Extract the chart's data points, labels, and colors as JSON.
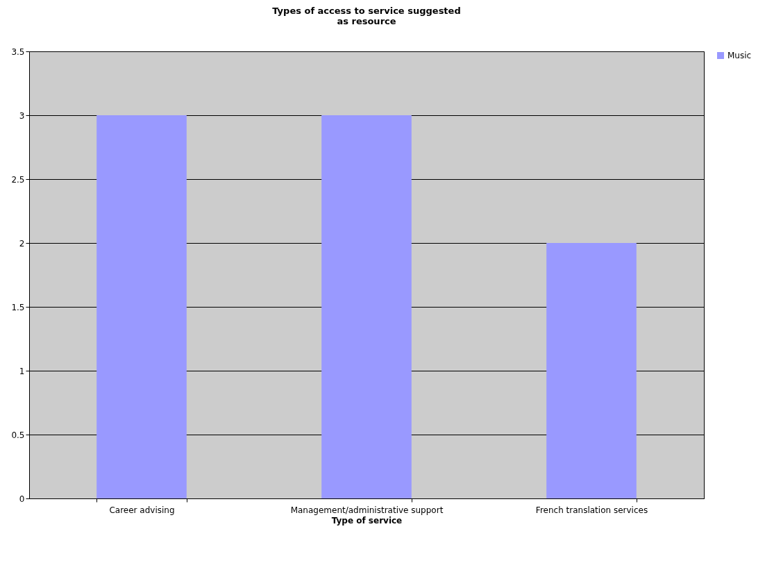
{
  "chart_data": {
    "type": "bar",
    "title": "Types of access to service suggested as resource",
    "xlabel": "Type of service",
    "categories": [
      "Career advising",
      "Management/administrative support",
      "French translation services"
    ],
    "series": [
      {
        "name": "Music",
        "color": "#9999ff",
        "values": [
          3,
          3,
          2
        ]
      }
    ],
    "ylim": [
      0,
      3.5
    ],
    "yticks": [
      0,
      0.5,
      1,
      1.5,
      2,
      2.5,
      3,
      3.5
    ],
    "grid": "y",
    "legend": "right"
  }
}
